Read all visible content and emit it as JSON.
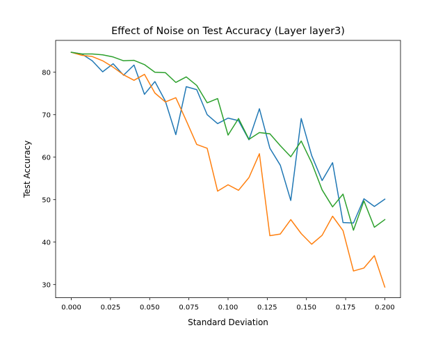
{
  "chart_data": {
    "type": "line",
    "title": "Effect of Noise on Test Accuracy (Layer layer3)",
    "xlabel": "Standard Deviation",
    "ylabel": "Test Accuracy",
    "xlim": [
      -0.01,
      0.21
    ],
    "ylim": [
      26.9,
      87.5
    ],
    "xticks": [
      0.0,
      0.025,
      0.05,
      0.075,
      0.1,
      0.125,
      0.15,
      0.175,
      0.2
    ],
    "xtick_labels": [
      "0.000",
      "0.025",
      "0.050",
      "0.075",
      "0.100",
      "0.125",
      "0.150",
      "0.175",
      "0.200"
    ],
    "yticks": [
      30,
      40,
      50,
      60,
      70,
      80
    ],
    "ytick_labels": [
      "30",
      "40",
      "50",
      "60",
      "70",
      "80"
    ],
    "grid": false,
    "x": [
      0.0,
      0.00667,
      0.01333,
      0.02,
      0.02667,
      0.03333,
      0.04,
      0.04667,
      0.05333,
      0.06,
      0.06667,
      0.07333,
      0.08,
      0.08667,
      0.09333,
      0.1,
      0.10667,
      0.11333,
      0.12,
      0.12667,
      0.13333,
      0.14,
      0.14667,
      0.15333,
      0.16,
      0.16667,
      0.17333,
      0.18,
      0.18667,
      0.19333,
      0.2
    ],
    "series": [
      {
        "color": "#1f77b4",
        "values": [
          84.7,
          84.3,
          82.7,
          80.1,
          82.0,
          79.3,
          81.7,
          74.8,
          77.8,
          73.2,
          65.3,
          76.6,
          75.9,
          70.0,
          67.9,
          69.2,
          68.6,
          64.1,
          71.4,
          62.1,
          58.1,
          49.8,
          69.1,
          60.4,
          54.5,
          58.7,
          44.6,
          44.5,
          50.2,
          48.4,
          50.1
        ]
      },
      {
        "color": "#ff7f0e",
        "values": [
          84.7,
          84.0,
          83.7,
          82.7,
          81.2,
          79.4,
          78.1,
          79.5,
          75.1,
          73.0,
          74.0,
          68.6,
          63.0,
          62.1,
          52.0,
          53.5,
          52.2,
          55.2,
          60.8,
          41.5,
          41.9,
          45.3,
          42.0,
          39.5,
          41.6,
          46.1,
          42.7,
          33.2,
          33.9,
          36.8,
          29.4
        ]
      },
      {
        "color": "#2ca02c",
        "values": [
          84.7,
          84.3,
          84.3,
          84.1,
          83.6,
          82.7,
          82.8,
          81.8,
          80.0,
          79.9,
          77.6,
          78.9,
          76.9,
          72.8,
          73.8,
          65.2,
          69.1,
          64.2,
          65.8,
          65.5,
          62.7,
          60.1,
          63.8,
          58.7,
          52.3,
          48.3,
          51.3,
          42.8,
          49.7,
          43.5,
          45.3
        ]
      }
    ]
  }
}
